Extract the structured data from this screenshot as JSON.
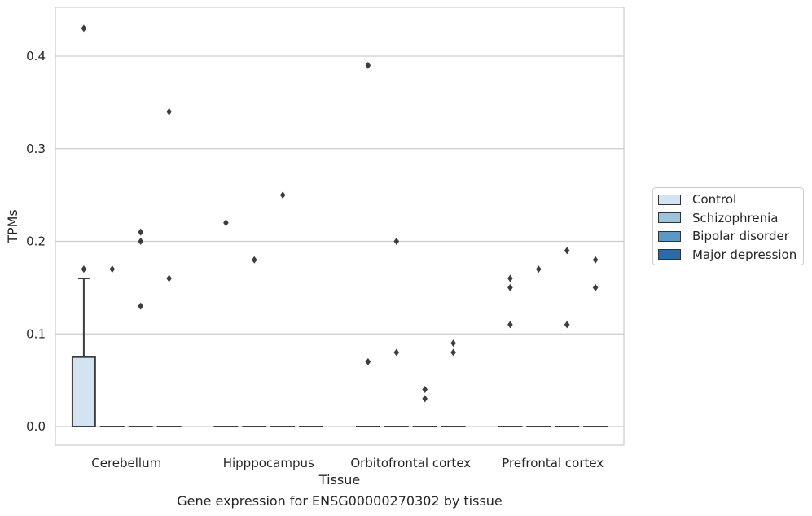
{
  "chart_data": {
    "type": "box",
    "caption": "Gene expression for ENSG00000270302 by tissue",
    "xlabel": "Tissue",
    "ylabel": "TPMs",
    "ylim": [
      -0.021,
      0.454
    ],
    "yticks": [
      0.0,
      0.1,
      0.2,
      0.3,
      0.4
    ],
    "ytick_labels": [
      "0.0",
      "0.1",
      "0.2",
      "0.3",
      "0.4"
    ],
    "grid": "horizontal",
    "legend_position": "right",
    "categories": [
      "Cerebellum",
      "Hipppocampus",
      "Orbitofrontal cortex",
      "Prefrontal cortex"
    ],
    "series": [
      {
        "name": "Control",
        "color": "#d4e3f1",
        "boxes": [
          {
            "q1": 0.0,
            "median": 0.0,
            "q3": 0.075,
            "whisker_low": 0.0,
            "whisker_high": 0.16,
            "outliers": [
              0.43,
              0.17
            ]
          },
          {
            "q1": 0.0,
            "median": 0.0,
            "q3": 0.0,
            "whisker_low": 0.0,
            "whisker_high": 0.0,
            "outliers": [
              0.22
            ]
          },
          {
            "q1": 0.0,
            "median": 0.0,
            "q3": 0.0,
            "whisker_low": 0.0,
            "whisker_high": 0.0,
            "outliers": [
              0.39,
              0.07
            ]
          },
          {
            "q1": 0.0,
            "median": 0.0,
            "q3": 0.0,
            "whisker_low": 0.0,
            "whisker_high": 0.0,
            "outliers": [
              0.16,
              0.15,
              0.11
            ]
          }
        ]
      },
      {
        "name": "Schizophrenia",
        "color": "#9dc3dc",
        "boxes": [
          {
            "q1": 0.0,
            "median": 0.0,
            "q3": 0.0,
            "whisker_low": 0.0,
            "whisker_high": 0.0,
            "outliers": [
              0.17
            ]
          },
          {
            "q1": 0.0,
            "median": 0.0,
            "q3": 0.0,
            "whisker_low": 0.0,
            "whisker_high": 0.0,
            "outliers": [
              0.18
            ]
          },
          {
            "q1": 0.0,
            "median": 0.0,
            "q3": 0.0,
            "whisker_low": 0.0,
            "whisker_high": 0.0,
            "outliers": [
              0.2,
              0.08
            ]
          },
          {
            "q1": 0.0,
            "median": 0.0,
            "q3": 0.0,
            "whisker_low": 0.0,
            "whisker_high": 0.0,
            "outliers": [
              0.17
            ]
          }
        ]
      },
      {
        "name": "Bipolar disorder",
        "color": "#5a99c4",
        "boxes": [
          {
            "q1": 0.0,
            "median": 0.0,
            "q3": 0.0,
            "whisker_low": 0.0,
            "whisker_high": 0.0,
            "outliers": [
              0.21,
              0.2,
              0.13
            ]
          },
          {
            "q1": 0.0,
            "median": 0.0,
            "q3": 0.0,
            "whisker_low": 0.0,
            "whisker_high": 0.0,
            "outliers": [
              0.25
            ]
          },
          {
            "q1": 0.0,
            "median": 0.0,
            "q3": 0.0,
            "whisker_low": 0.0,
            "whisker_high": 0.0,
            "outliers": [
              0.04,
              0.03
            ]
          },
          {
            "q1": 0.0,
            "median": 0.0,
            "q3": 0.0,
            "whisker_low": 0.0,
            "whisker_high": 0.0,
            "outliers": [
              0.19,
              0.11
            ]
          }
        ]
      },
      {
        "name": "Major depression",
        "color": "#2b6ba8",
        "boxes": [
          {
            "q1": 0.0,
            "median": 0.0,
            "q3": 0.0,
            "whisker_low": 0.0,
            "whisker_high": 0.0,
            "outliers": [
              0.34,
              0.16
            ]
          },
          {
            "q1": 0.0,
            "median": 0.0,
            "q3": 0.0,
            "whisker_low": 0.0,
            "whisker_high": 0.0,
            "outliers": []
          },
          {
            "q1": 0.0,
            "median": 0.0,
            "q3": 0.0,
            "whisker_low": 0.0,
            "whisker_high": 0.0,
            "outliers": [
              0.09,
              0.08
            ]
          },
          {
            "q1": 0.0,
            "median": 0.0,
            "q3": 0.0,
            "whisker_low": 0.0,
            "whisker_high": 0.0,
            "outliers": [
              0.18,
              0.15
            ]
          }
        ]
      }
    ]
  }
}
